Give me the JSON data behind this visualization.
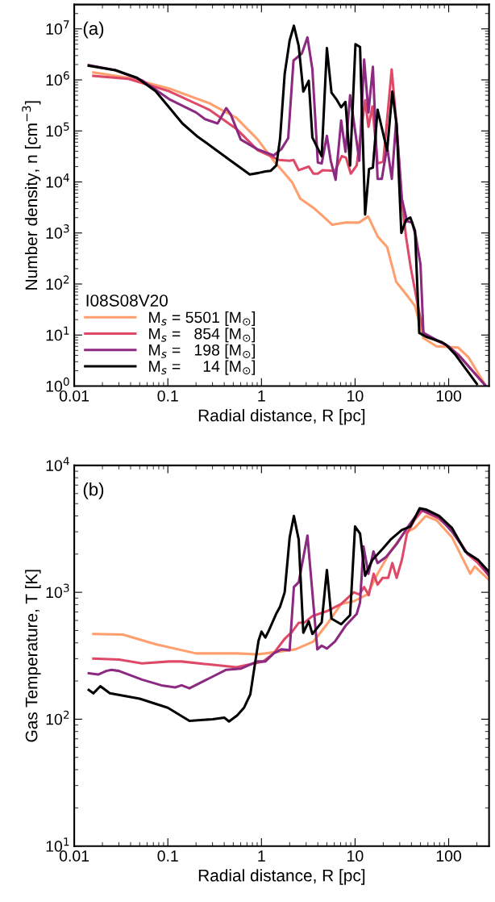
{
  "chart_data": [
    {
      "type": "line",
      "xlabel": "Radial distance, R [pc]",
      "ylabel": "Number density, n [cm$^{−3}$]",
      "legend_title": "I08S08V20",
      "legend": "bottom left",
      "log": "xy",
      "grid": false,
      "marker": "none",
      "line_style": "solid",
      "annotations": [
        "(a)"
      ],
      "xlim": [
        0.01,
        270
      ],
      "xticks": [
        0.01,
        0.1,
        1,
        10,
        100
      ],
      "ylim": [
        1,
        30000000
      ],
      "yticks": [
        {
          "value": 1,
          "label": "10$^{0}$"
        },
        {
          "value": 10,
          "label": "10$^{1}$"
        },
        {
          "value": 100,
          "label": "10$^{2}$"
        },
        {
          "value": 1000,
          "label": "10$^{3}$"
        },
        {
          "value": 10000,
          "label": "10$^{4}$"
        },
        {
          "value": 100000,
          "label": "10$^{5}$"
        },
        {
          "value": 1000000,
          "label": "10$^{6}$"
        },
        {
          "value": 10000000,
          "label": "10$^{7}$"
        }
      ],
      "series": [
        {
          "name": "M$_{s}$ = 5501 [M$_{⊙}$]",
          "color": "#fe9f6d",
          "x": [
            0.016,
            0.038,
            0.103,
            0.277,
            0.54,
            0.91,
            1.35,
            1.53,
            2.13,
            2.6,
            3.6,
            4.7,
            5.7,
            8.0,
            11,
            13.8,
            17.4,
            22,
            27.5,
            35.8,
            43.7,
            53.7,
            74,
            126,
            162,
            250
          ],
          "values": [
            1400000,
            1100000,
            680000,
            350000,
            180000,
            68000,
            26000,
            20000,
            9800,
            4700,
            3100,
            2000,
            1450,
            1600,
            1600,
            2100,
            860,
            530,
            110,
            60,
            37,
            8.7,
            6.0,
            5.7,
            3.7,
            1.0
          ]
        },
        {
          "name": "M$_{s}$ =   854 [M$_{⊙}$]",
          "color": "#de4968",
          "x": [
            0.016,
            0.038,
            0.103,
            0.277,
            0.54,
            0.91,
            1.53,
            2.0,
            2.2,
            2.5,
            3.2,
            3.6,
            4.0,
            4.5,
            6.1,
            7.2,
            8.0,
            9.0,
            10.4,
            12.8,
            13.9,
            15.3,
            17.4,
            20,
            24.6,
            27.5,
            31.6,
            35,
            39.5,
            47.5,
            53.7,
            74,
            94,
            126,
            250
          ],
          "values": [
            1200000,
            1050000,
            600000,
            260000,
            110000,
            42000,
            27000,
            26000,
            27000,
            17000,
            20000,
            14500,
            14500,
            17000,
            16500,
            32000,
            30000,
            14500,
            21000,
            400000,
            120000,
            300000,
            23000,
            25000,
            1600000,
            160000,
            4200,
            850,
            200,
            33,
            11,
            7.8,
            6.4,
            4.2,
            1.0
          ]
        },
        {
          "name": "M$_{s}$ =   198 [M$_{⊙}$]",
          "color": "#8c2981",
          "x": [
            0.0143,
            0.0275,
            0.053,
            0.103,
            0.2,
            0.25,
            0.34,
            0.42,
            0.47,
            0.6,
            0.9,
            1.25,
            1.35,
            1.63,
            1.93,
            2.2,
            2.7,
            3.1,
            3.5,
            4.0,
            4.4,
            5.0,
            5.5,
            6.2,
            7.1,
            7.9,
            8.85,
            11.1,
            12.5,
            13.9,
            15.5,
            17.4,
            19.3,
            22,
            24.7,
            27.5,
            31.6,
            35.8,
            40.7,
            44.6,
            50,
            53.7,
            74,
            100,
            133,
            250
          ],
          "values": [
            1950000,
            1550000,
            980000,
            420000,
            230000,
            170000,
            140000,
            280000,
            210000,
            68000,
            44000,
            35000,
            33000,
            44000,
            72000,
            2400000,
            3300000,
            6800000,
            1600000,
            24000,
            23000,
            80000,
            26000,
            11000,
            160000,
            39000,
            500000,
            26000,
            2500000,
            230000,
            1800000,
            11500,
            11500,
            49000,
            11500,
            160000,
            4700,
            1700,
            1600,
            850,
            240,
            11,
            8,
            6,
            3.7,
            1.0
          ]
        },
        {
          "name": "M$_{s}$ =     14 [M$_{⊙}$]",
          "color": "#000000",
          "x": [
            0.0143,
            0.0275,
            0.047,
            0.074,
            0.103,
            0.143,
            0.21,
            0.277,
            0.47,
            0.75,
            0.93,
            1.1,
            1.25,
            1.44,
            1.58,
            1.77,
            2.0,
            2.22,
            2.5,
            2.8,
            3.2,
            3.5,
            4.4,
            5.0,
            5.6,
            6.3,
            7.1,
            7.9,
            8.85,
            10.1,
            11.3,
            12.8,
            14.1,
            15.5,
            17.4,
            22,
            25,
            27.8,
            31.2,
            35,
            39,
            43.7,
            48.5,
            57,
            85,
            94,
            117,
            200
          ],
          "values": [
            1900000,
            1550000,
            1100000,
            600000,
            290000,
            140000,
            76000,
            53000,
            26000,
            14000,
            15000,
            16000,
            16500,
            21000,
            70000,
            1300000,
            5900000,
            11500000,
            4600000,
            590000,
            960000,
            74000,
            32000,
            4200000,
            560000,
            420000,
            290000,
            370000,
            21000,
            5000000,
            4400000,
            2300,
            18000,
            19000,
            260000,
            41000,
            590000,
            130000,
            1000,
            1800,
            2000,
            1100,
            11,
            9.3,
            7.2,
            6.4,
            4.2,
            1.1
          ]
        }
      ]
    },
    {
      "type": "line",
      "xlabel": "Radial distance, R [pc]",
      "ylabel": "Gas Temperature, T [K]",
      "log": "xy",
      "grid": false,
      "marker": "none",
      "line_style": "solid",
      "annotations": [
        "(b)"
      ],
      "xlim": [
        0.01,
        270
      ],
      "xticks": [
        0.01,
        0.1,
        1,
        10,
        100
      ],
      "ylim": [
        10,
        10000
      ],
      "yticks": [
        {
          "value": 10,
          "label": "10$^{1}$"
        },
        {
          "value": 100,
          "label": "10$^{2}$"
        },
        {
          "value": 1000,
          "label": "10$^{3}$"
        },
        {
          "value": 10000,
          "label": "10$^{4}$"
        }
      ],
      "series": [
        {
          "color": "#fe9f6d",
          "x": [
            0.016,
            0.033,
            0.074,
            0.2,
            0.55,
            0.9,
            1.1,
            2.3,
            3.6,
            5.0,
            7.1,
            9.7,
            13.5,
            17.4,
            23.9,
            33,
            43,
            57,
            74,
            109,
            170,
            190,
            270
          ],
          "values": [
            470,
            465,
            390,
            330,
            330,
            325,
            330,
            355,
            410,
            560,
            810,
            850,
            960,
            1400,
            2100,
            2900,
            3200,
            4000,
            3700,
            2700,
            1400,
            1600,
            1250
          ]
        },
        {
          "color": "#de4968",
          "x": [
            0.016,
            0.03,
            0.053,
            0.103,
            0.14,
            0.277,
            0.54,
            1.04,
            1.35,
            1.77,
            2.13,
            2.5,
            2.9,
            3.5,
            5.0,
            7.1,
            9.7,
            11.1,
            12.5,
            14,
            15.8,
            17.4,
            19.7,
            22.6,
            25,
            27.8,
            31.6,
            35.8,
            43,
            52,
            79,
            109,
            160,
            206,
            270
          ],
          "values": [
            300,
            295,
            275,
            285,
            285,
            270,
            257,
            285,
            330,
            430,
            490,
            575,
            580,
            650,
            710,
            810,
            1000,
            960,
            1100,
            950,
            1400,
            1150,
            1300,
            1300,
            1700,
            1300,
            1800,
            2900,
            3700,
            4400,
            3800,
            3100,
            2000,
            1700,
            1350
          ]
        },
        {
          "color": "#8c2981",
          "x": [
            0.0143,
            0.018,
            0.022,
            0.025,
            0.03,
            0.053,
            0.085,
            0.12,
            0.14,
            0.17,
            0.277,
            0.42,
            0.6,
            0.9,
            1.1,
            1.35,
            1.63,
            2.0,
            2.22,
            2.5,
            3.1,
            3.95,
            4.4,
            5.0,
            6.1,
            8.0,
            10.4,
            11.3,
            12.3,
            13.9,
            15.7,
            17.4,
            21.5,
            27.8,
            35.8,
            50,
            79,
            109,
            160,
            206,
            270
          ],
          "values": [
            230,
            225,
            240,
            245,
            240,
            205,
            185,
            178,
            185,
            175,
            210,
            245,
            250,
            285,
            285,
            330,
            355,
            350,
            1100,
            1200,
            2800,
            355,
            380,
            360,
            410,
            550,
            675,
            830,
            2300,
            1400,
            2100,
            1700,
            1900,
            2400,
            3200,
            4500,
            3900,
            3000,
            2000,
            1800,
            1350
          ]
        },
        {
          "color": "#000000",
          "x": [
            0.0143,
            0.016,
            0.019,
            0.024,
            0.05,
            0.1,
            0.17,
            0.3,
            0.4,
            0.45,
            0.55,
            0.65,
            0.76,
            0.86,
            0.93,
            1.0,
            1.1,
            1.2,
            1.44,
            1.58,
            1.77,
            2.0,
            2.22,
            2.5,
            2.8,
            3.2,
            3.5,
            4.4,
            5.0,
            5.6,
            7.1,
            8.85,
            10.0,
            11.3,
            12.8,
            15.3,
            19.7,
            23.9,
            31.6,
            39,
            44.6,
            49,
            57,
            79,
            109,
            150,
            206,
            270
          ],
          "values": [
            170,
            160,
            182,
            160,
            145,
            123,
            97,
            100,
            103,
            96,
            107,
            123,
            157,
            285,
            415,
            490,
            440,
            500,
            680,
            770,
            1000,
            2700,
            4000,
            2600,
            480,
            590,
            470,
            580,
            1500,
            620,
            560,
            660,
            3300,
            2900,
            1350,
            1800,
            2200,
            2600,
            3100,
            3300,
            4000,
            4600,
            4500,
            4000,
            3200,
            2100,
            1800,
            1450
          ]
        }
      ]
    }
  ]
}
